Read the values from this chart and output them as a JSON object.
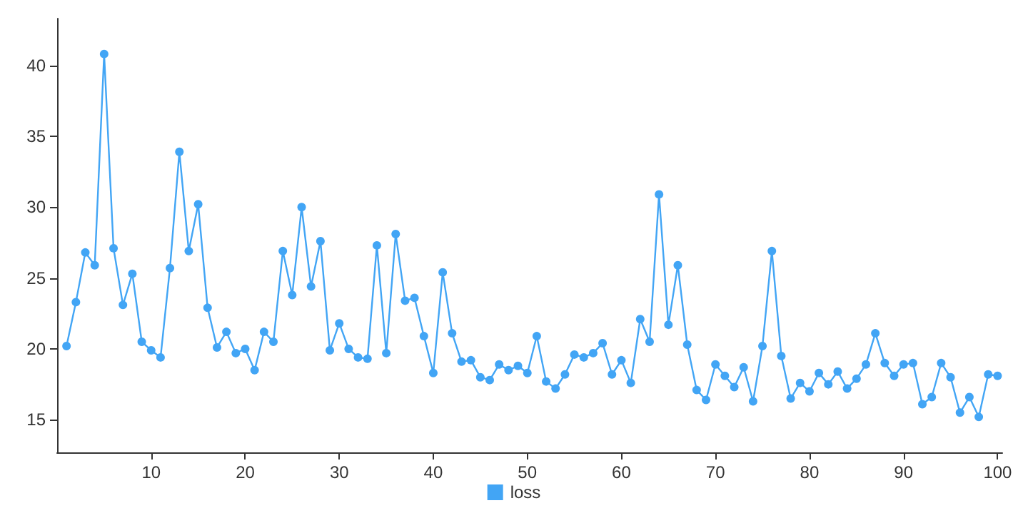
{
  "chart_data": {
    "type": "line",
    "x": [
      1,
      2,
      3,
      4,
      5,
      6,
      7,
      8,
      9,
      10,
      11,
      12,
      13,
      14,
      15,
      16,
      17,
      18,
      19,
      20,
      21,
      22,
      23,
      24,
      25,
      26,
      27,
      28,
      29,
      30,
      31,
      32,
      33,
      34,
      35,
      36,
      37,
      38,
      39,
      40,
      41,
      42,
      43,
      44,
      45,
      46,
      47,
      48,
      49,
      50,
      51,
      52,
      53,
      54,
      55,
      56,
      57,
      58,
      59,
      60,
      61,
      62,
      63,
      64,
      65,
      66,
      67,
      68,
      69,
      70,
      71,
      72,
      73,
      74,
      75,
      76,
      77,
      78,
      79,
      80,
      81,
      82,
      83,
      84,
      85,
      86,
      87,
      88,
      89,
      90,
      91,
      92,
      93,
      94,
      95,
      96,
      97,
      98,
      99,
      100
    ],
    "series": [
      {
        "name": "loss",
        "color": "#42a5f5",
        "values": [
          20.2,
          23.3,
          26.8,
          25.9,
          40.8,
          27.1,
          23.1,
          25.3,
          20.5,
          19.9,
          19.4,
          25.7,
          33.9,
          26.9,
          30.2,
          22.9,
          20.1,
          21.2,
          19.7,
          20.0,
          18.5,
          21.2,
          20.5,
          26.9,
          23.8,
          30.0,
          24.4,
          27.6,
          19.9,
          21.8,
          20.0,
          19.4,
          19.3,
          27.3,
          19.7,
          28.1,
          23.4,
          23.6,
          20.9,
          18.3,
          25.4,
          21.1,
          19.1,
          19.2,
          18.0,
          17.8,
          18.9,
          18.5,
          18.8,
          18.3,
          20.9,
          17.7,
          17.2,
          18.2,
          19.6,
          19.4,
          19.7,
          20.4,
          18.2,
          19.2,
          17.6,
          22.1,
          20.5,
          30.9,
          21.7,
          25.9,
          20.3,
          17.1,
          16.4,
          18.9,
          18.1,
          17.3,
          18.7,
          16.3,
          20.2,
          26.9,
          19.5,
          16.5,
          17.6,
          17.0,
          18.3,
          17.5,
          18.4,
          17.2,
          17.9,
          18.9,
          21.1,
          19.0,
          18.1,
          18.9,
          19.0,
          16.1,
          16.6,
          19.0,
          18.0,
          15.5,
          16.6,
          15.2,
          18.2,
          18.1
        ]
      }
    ],
    "xlim": [
      0,
      100.5
    ],
    "xticks": [
      10,
      20,
      30,
      40,
      50,
      60,
      70,
      80,
      90,
      100
    ],
    "ylim": [
      12.7,
      43.3
    ],
    "yticks": [
      15,
      20,
      25,
      30,
      35,
      40
    ],
    "grid": false,
    "legend": "bottom",
    "marker": "circle",
    "line_style": "solid"
  }
}
